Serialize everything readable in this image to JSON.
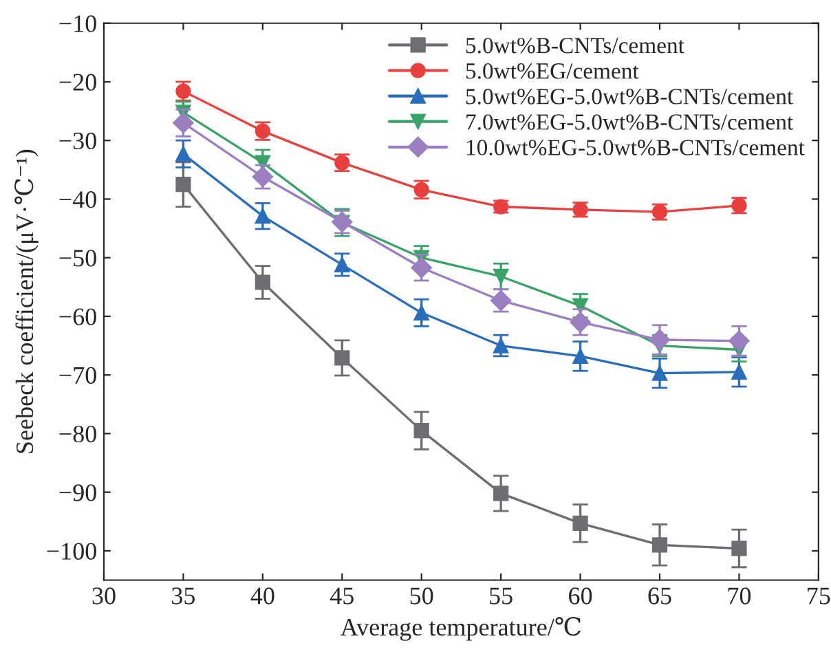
{
  "chart_data": {
    "type": "line",
    "xlabel": "Average temperature/℃",
    "ylabel": "Seebeck coefficient/(μV·℃⁻¹)",
    "x": [
      35,
      40,
      45,
      50,
      55,
      60,
      65,
      70
    ],
    "series": [
      {
        "name": "5.0wt%B-CNTs/cement",
        "color": "#6d6e71",
        "marker": "square",
        "values": [
          -37.5,
          -54.2,
          -67.1,
          -79.5,
          -90.2,
          -95.3,
          -99.0,
          -99.6
        ],
        "errors": [
          3.8,
          2.8,
          3.0,
          3.2,
          3.0,
          3.2,
          3.5,
          3.2
        ]
      },
      {
        "name": "5.0wt%EG/cement",
        "color": "#e8403f",
        "marker": "circle",
        "values": [
          -21.6,
          -28.4,
          -33.8,
          -38.4,
          -41.3,
          -41.8,
          -42.2,
          -41.1
        ],
        "errors": [
          1.6,
          1.5,
          1.4,
          1.5,
          1.0,
          1.2,
          1.3,
          1.3
        ]
      },
      {
        "name": "5.0wt%EG-5.0wt%B-CNTs/cement",
        "color": "#2a6ebb",
        "marker": "triangle",
        "values": [
          -32.3,
          -42.9,
          -51.2,
          -59.4,
          -65.0,
          -66.8,
          -69.7,
          -69.5
        ],
        "errors": [
          2.3,
          2.2,
          1.9,
          2.3,
          1.8,
          2.5,
          2.5,
          2.5
        ]
      },
      {
        "name": "7.0wt%EG-5.0wt%B-CNTs/cement",
        "color": "#3aa36a",
        "marker": "triangle_down",
        "values": [
          -25.2,
          -33.8,
          -44.0,
          -50.0,
          -53.2,
          -58.2,
          -65.0,
          -65.7
        ],
        "errors": [
          1.8,
          2.2,
          2.3,
          2.0,
          2.2,
          2.0,
          1.8,
          2.0
        ]
      },
      {
        "name": "10.0wt%EG-5.0wt%B-CNTs/cement",
        "color": "#9b7fc0",
        "marker": "diamond",
        "values": [
          -27.0,
          -36.2,
          -43.9,
          -51.7,
          -57.3,
          -61.0,
          -64.0,
          -64.2
        ],
        "errors": [
          2.3,
          2.0,
          1.9,
          2.2,
          1.9,
          2.2,
          2.5,
          2.5
        ]
      }
    ],
    "xlim": [
      30,
      75
    ],
    "xticks": [
      30,
      35,
      40,
      45,
      50,
      55,
      60,
      65,
      70,
      75
    ],
    "ylim": [
      -105,
      -10
    ],
    "yticks": [
      {
        "value": -100,
        "label": "−100"
      },
      {
        "value": -90,
        "label": "−90"
      },
      {
        "value": -80,
        "label": "−80"
      },
      {
        "value": -70,
        "label": "−70"
      },
      {
        "value": -60,
        "label": "−60"
      },
      {
        "value": -50,
        "label": "−50"
      },
      {
        "value": -40,
        "label": "−40"
      },
      {
        "value": -30,
        "label": "−30"
      },
      {
        "value": -20,
        "label": "−20"
      },
      {
        "value": -10,
        "label": "−10"
      }
    ],
    "grid": false,
    "legend": "top right",
    "line_style": "solid"
  }
}
